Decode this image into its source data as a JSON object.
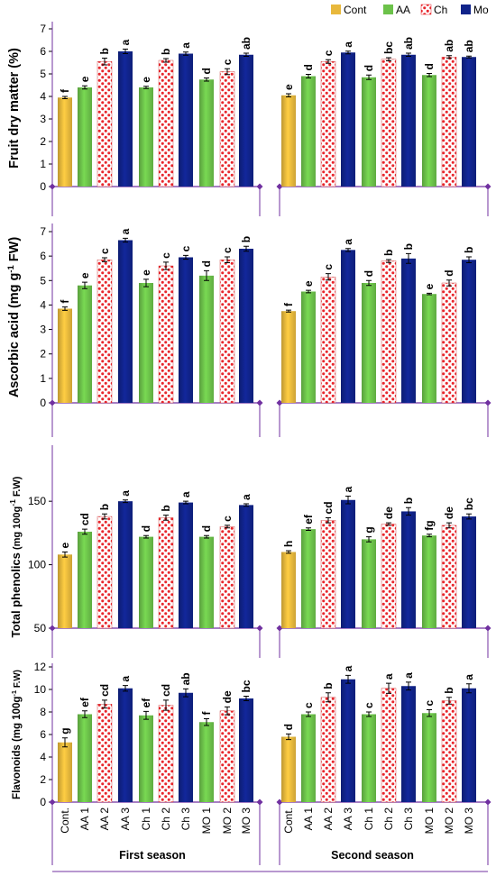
{
  "legend": [
    {
      "label": "Cont",
      "key": "cont"
    },
    {
      "label": "AA",
      "key": "aa"
    },
    {
      "label": "Ch",
      "key": "ch"
    },
    {
      "label": "Mo",
      "key": "mo"
    }
  ],
  "colors": {
    "cont": "#e8b83c",
    "aa": "#6cc24a",
    "ch_fill": "#ffffff",
    "ch_dot": "#e8262c",
    "mo": "#10238a",
    "axis_marker": "#7030a0"
  },
  "categories": [
    "Cont.",
    "AA 1",
    "AA 2",
    "AA 3",
    "Ch 1",
    "Ch 2",
    "Ch 3",
    "MO 1",
    "MO 2",
    "MO 3"
  ],
  "category_types": [
    "cont",
    "aa",
    "ch",
    "mo",
    "aa",
    "ch",
    "mo",
    "aa",
    "ch",
    "mo"
  ],
  "seasons": [
    "First season",
    "Second season"
  ],
  "chart_data": [
    {
      "type": "bar",
      "ylabel_parts": [
        "Fruit dry matter (%)"
      ],
      "ylim": [
        0,
        7
      ],
      "yticks": [
        0,
        1,
        2,
        3,
        4,
        5,
        6,
        7
      ],
      "series": [
        {
          "name": "First season",
          "values": [
            3.95,
            4.4,
            5.55,
            6.0,
            4.4,
            5.6,
            5.9,
            4.75,
            5.1,
            5.85
          ],
          "errors": [
            0.05,
            0.07,
            0.15,
            0.1,
            0.05,
            0.08,
            0.07,
            0.07,
            0.13,
            0.07
          ],
          "letters": [
            "f",
            "e",
            "b",
            "a",
            "e",
            "b",
            "a",
            "d",
            "c",
            "ab"
          ]
        },
        {
          "name": "Second season",
          "values": [
            4.05,
            4.9,
            5.55,
            5.95,
            4.85,
            5.65,
            5.85,
            4.95,
            5.75,
            5.75
          ],
          "errors": [
            0.07,
            0.08,
            0.08,
            0.06,
            0.1,
            0.07,
            0.07,
            0.07,
            0.06,
            0.04
          ],
          "letters": [
            "e",
            "d",
            "c",
            "a",
            "d",
            "bc",
            "ab",
            "d",
            "ab",
            "ab"
          ]
        }
      ]
    },
    {
      "type": "bar",
      "ylabel_parts": [
        "Ascorbic acid  (mg g",
        "-1",
        " FW)"
      ],
      "ylim": [
        0,
        7
      ],
      "yticks": [
        0,
        1,
        2,
        3,
        4,
        5,
        6,
        7
      ],
      "series": [
        {
          "name": "First season",
          "values": [
            3.85,
            4.8,
            5.85,
            6.65,
            4.9,
            5.6,
            5.95,
            5.2,
            5.85,
            6.3
          ],
          "errors": [
            0.07,
            0.13,
            0.08,
            0.08,
            0.15,
            0.15,
            0.08,
            0.2,
            0.12,
            0.1
          ],
          "letters": [
            "f",
            "e",
            "c",
            "a",
            "e",
            "c",
            "c",
            "d",
            "c",
            "b"
          ]
        },
        {
          "name": "Second season",
          "values": [
            3.75,
            4.55,
            5.15,
            6.25,
            4.9,
            5.8,
            5.9,
            4.45,
            4.9,
            5.85
          ],
          "errors": [
            0.04,
            0.05,
            0.13,
            0.06,
            0.1,
            0.06,
            0.2,
            0.03,
            0.12,
            0.12
          ],
          "letters": [
            "f",
            "e",
            "c",
            "a",
            "d",
            "b",
            "b",
            "e",
            "d",
            "b"
          ]
        }
      ]
    },
    {
      "type": "bar",
      "ylabel_parts": [
        "Total phenolics",
        " (mg 100g",
        "-1",
        " F.W)"
      ],
      "ylim": [
        50,
        170
      ],
      "yticks": [
        50,
        100,
        150
      ],
      "series": [
        {
          "name": "First season",
          "values": [
            108,
            126,
            138,
            150,
            122,
            137,
            149,
            122,
            130,
            147
          ],
          "errors": [
            2,
            2,
            2,
            1,
            1,
            2,
            1,
            1,
            1,
            1
          ],
          "letters": [
            "e",
            "cd",
            "b",
            "a",
            "d",
            "b",
            "a",
            "d",
            "c",
            "a"
          ]
        },
        {
          "name": "Second season",
          "values": [
            110,
            128,
            135,
            151,
            120,
            132,
            142,
            123,
            131,
            138
          ],
          "errors": [
            1,
            1,
            2,
            3,
            2,
            1,
            3,
            1,
            2,
            2
          ],
          "letters": [
            "h",
            "ef",
            "cd",
            "a",
            "g",
            "de",
            "b",
            "fg",
            "de",
            "bc"
          ]
        }
      ]
    },
    {
      "type": "bar",
      "ylabel_parts": [
        "Flavonoids (mg 100g",
        "-1",
        " F.W)"
      ],
      "ylim": [
        0,
        12
      ],
      "yticks": [
        0,
        2,
        4,
        6,
        8,
        10,
        12
      ],
      "series": [
        {
          "name": "First season",
          "values": [
            5.3,
            7.8,
            8.7,
            10.1,
            7.7,
            8.6,
            9.7,
            7.1,
            8.1,
            9.2
          ],
          "errors": [
            0.4,
            0.3,
            0.35,
            0.25,
            0.35,
            0.45,
            0.35,
            0.3,
            0.35,
            0.2
          ],
          "letters": [
            "g",
            "ef",
            "cd",
            "a",
            "ef",
            "cd",
            "ab",
            "f",
            "de",
            "bc"
          ]
        },
        {
          "name": "Second season",
          "values": [
            5.8,
            7.8,
            9.3,
            10.9,
            7.8,
            10.1,
            10.3,
            7.9,
            9.0,
            10.1
          ],
          "errors": [
            0.25,
            0.2,
            0.4,
            0.35,
            0.2,
            0.45,
            0.35,
            0.3,
            0.3,
            0.4
          ],
          "letters": [
            "d",
            "c",
            "b",
            "a",
            "c",
            "a",
            "a",
            "c",
            "b",
            "a"
          ]
        }
      ]
    }
  ]
}
